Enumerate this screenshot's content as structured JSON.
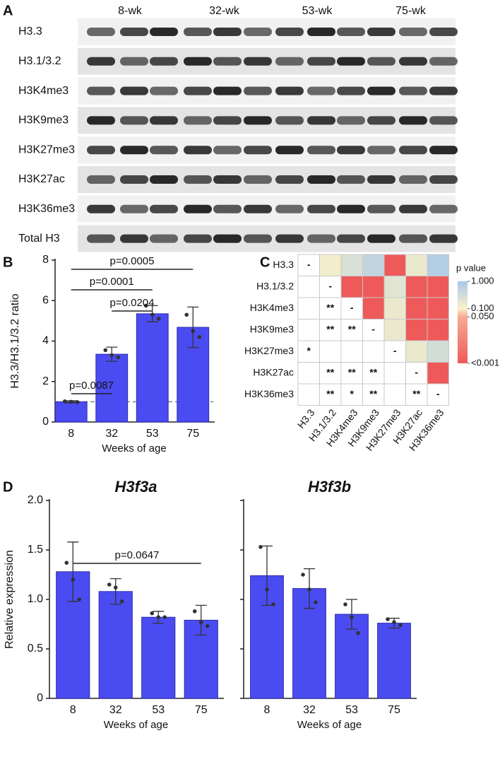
{
  "panels": [
    "A",
    "B",
    "C",
    "D"
  ],
  "blot": {
    "groups": [
      "8-wk",
      "32-wk",
      "53-wk",
      "75-wk"
    ],
    "rows": [
      "H3.3",
      "H3.1/3.2",
      "H3K4me3",
      "H3K9me3",
      "H3K27me3",
      "H3K27ac",
      "H3K36me3",
      "Total H3"
    ]
  },
  "chart_data": [
    {
      "type": "bar",
      "categories": [
        "8",
        "32",
        "53",
        "75"
      ],
      "values": [
        1.0,
        3.35,
        5.35,
        4.68
      ],
      "errors": [
        0.05,
        0.35,
        0.4,
        1.0
      ],
      "points": [
        [
          1.02,
          1.0,
          0.98
        ],
        [
          3.55,
          3.3,
          3.2
        ],
        [
          5.75,
          5.3,
          5.1
        ],
        [
          5.3,
          4.5,
          4.2
        ]
      ],
      "color": "#4b4bf2",
      "ylim": [
        0,
        8
      ],
      "yticks": [
        0,
        2,
        4,
        6,
        8
      ],
      "reference_line": 1,
      "ylabel": "H3.3/H3.1/3.2 ratio",
      "xlabel": "Weeks of age",
      "comparisons": [
        {
          "from": "8",
          "to": "75",
          "label": "p=0.0005"
        },
        {
          "from": "8",
          "to": "53",
          "label": "p=0.0001"
        },
        {
          "from": "32",
          "to": "53",
          "label": "p=0.0204"
        },
        {
          "from": "8",
          "to": "32",
          "label": "p=0.0087"
        }
      ]
    },
    {
      "type": "heatmap",
      "labels": [
        "H3.3",
        "H3.1/3.2",
        "H3K4me3",
        "H3K9me3",
        "H3K27me3",
        "H3K27ac",
        "H3K36me3"
      ],
      "p_values": [
        [
          null,
          0.12,
          0.25,
          0.5,
          0.0005,
          0.15,
          0.7
        ],
        [
          null,
          null,
          0.0005,
          0.0005,
          0.2,
          0.0005,
          0.0005
        ],
        [
          null,
          null,
          null,
          0.0005,
          0.15,
          0.0005,
          0.0005
        ],
        [
          null,
          null,
          null,
          null,
          0.15,
          0.0005,
          0.0005
        ],
        [
          null,
          null,
          null,
          null,
          null,
          0.15,
          0.3
        ],
        [
          null,
          null,
          null,
          null,
          null,
          null,
          0.0005
        ],
        [
          null,
          null,
          null,
          null,
          null,
          null,
          null
        ]
      ],
      "marks": [
        [
          "-",
          null,
          null,
          null,
          null,
          null,
          null
        ],
        [
          null,
          "-",
          null,
          null,
          null,
          null,
          null
        ],
        [
          null,
          "**",
          "-",
          null,
          null,
          null,
          null
        ],
        [
          null,
          "**",
          "**",
          "-",
          null,
          null,
          null
        ],
        [
          "*",
          null,
          null,
          null,
          "-",
          null,
          null
        ],
        [
          null,
          "**",
          "**",
          "**",
          null,
          "-",
          null
        ],
        [
          null,
          "**",
          "*",
          "**",
          null,
          "**",
          "-"
        ]
      ],
      "colorbar_title": "p value",
      "colorbar_ticks": [
        {
          "value": 1,
          "label": "1.000"
        },
        {
          "value": 0.1,
          "label": "0.100"
        },
        {
          "value": 0.05,
          "label": "0.050"
        },
        {
          "value": 0.001,
          "label": "<0.001"
        }
      ]
    },
    {
      "type": "bar",
      "title": "H3f3a",
      "categories": [
        "8",
        "32",
        "53",
        "75"
      ],
      "values": [
        1.28,
        1.08,
        0.82,
        0.79
      ],
      "errors": [
        0.3,
        0.13,
        0.06,
        0.15
      ],
      "points": [
        [
          1.37,
          1.2,
          1.0
        ],
        [
          1.15,
          1.12,
          0.98
        ],
        [
          0.86,
          0.82,
          0.82
        ],
        [
          0.88,
          0.77,
          0.73
        ]
      ],
      "color": "#4b4bf2",
      "ylim": [
        0,
        2
      ],
      "yticks": [
        0,
        0.5,
        {
          "value": 1,
          "label": "1.0"
        },
        1.5,
        {
          "value": 2,
          "label": "2.0"
        }
      ],
      "ylabel": "Relative expression",
      "xlabel": "Weeks of age",
      "comparisons": [
        {
          "from": "8",
          "to": "75",
          "label": "p=0.0647"
        }
      ]
    },
    {
      "type": "bar",
      "title": "H3f3b",
      "categories": [
        "8",
        "32",
        "53",
        "75"
      ],
      "values": [
        1.24,
        1.11,
        0.85,
        0.76
      ],
      "errors": [
        0.3,
        0.2,
        0.15,
        0.05
      ],
      "points": [
        [
          1.53,
          1.1,
          0.95
        ],
        [
          1.25,
          1.1,
          0.97
        ],
        [
          0.95,
          0.82,
          0.66
        ],
        [
          0.8,
          0.77,
          0.74
        ]
      ],
      "color": "#4b4bf2",
      "ylim": [
        0,
        2
      ],
      "yticks": [
        0,
        0.5,
        {
          "value": 1,
          "label": "1.0"
        },
        1.5,
        {
          "value": 2,
          "label": "2.0"
        }
      ],
      "ytick_labels": false,
      "xlabel": "Weeks of age"
    }
  ]
}
